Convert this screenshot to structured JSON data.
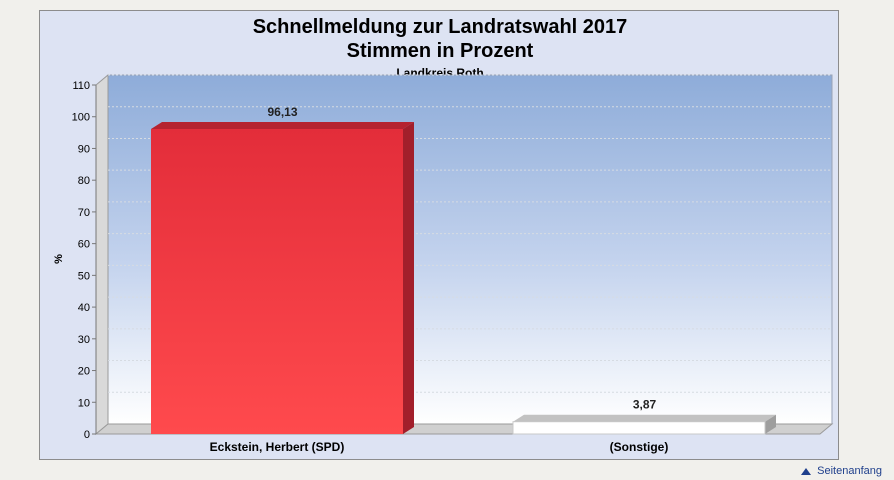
{
  "chart_data": {
    "type": "bar",
    "title": "Schnellmeldung zur Landratswahl 2017",
    "subtitle": "Stimmen in Prozent",
    "region": "Landkreis Roth",
    "ylabel": "%",
    "xlabel": "",
    "ylim": [
      0,
      110
    ],
    "yticks": [
      0,
      10,
      20,
      30,
      40,
      50,
      60,
      70,
      80,
      90,
      100,
      110
    ],
    "categories": [
      "Eckstein, Herbert (SPD)",
      "(Sonstige)"
    ],
    "values": [
      96.13,
      3.87
    ],
    "value_labels": [
      "96,13",
      "3,87"
    ],
    "bar_colors": [
      "#e8323c",
      "#ffffff"
    ],
    "legend": "none",
    "grid": true
  },
  "footer": {
    "link_label": "Seitenanfang",
    "icon": "arrow-up-icon"
  }
}
